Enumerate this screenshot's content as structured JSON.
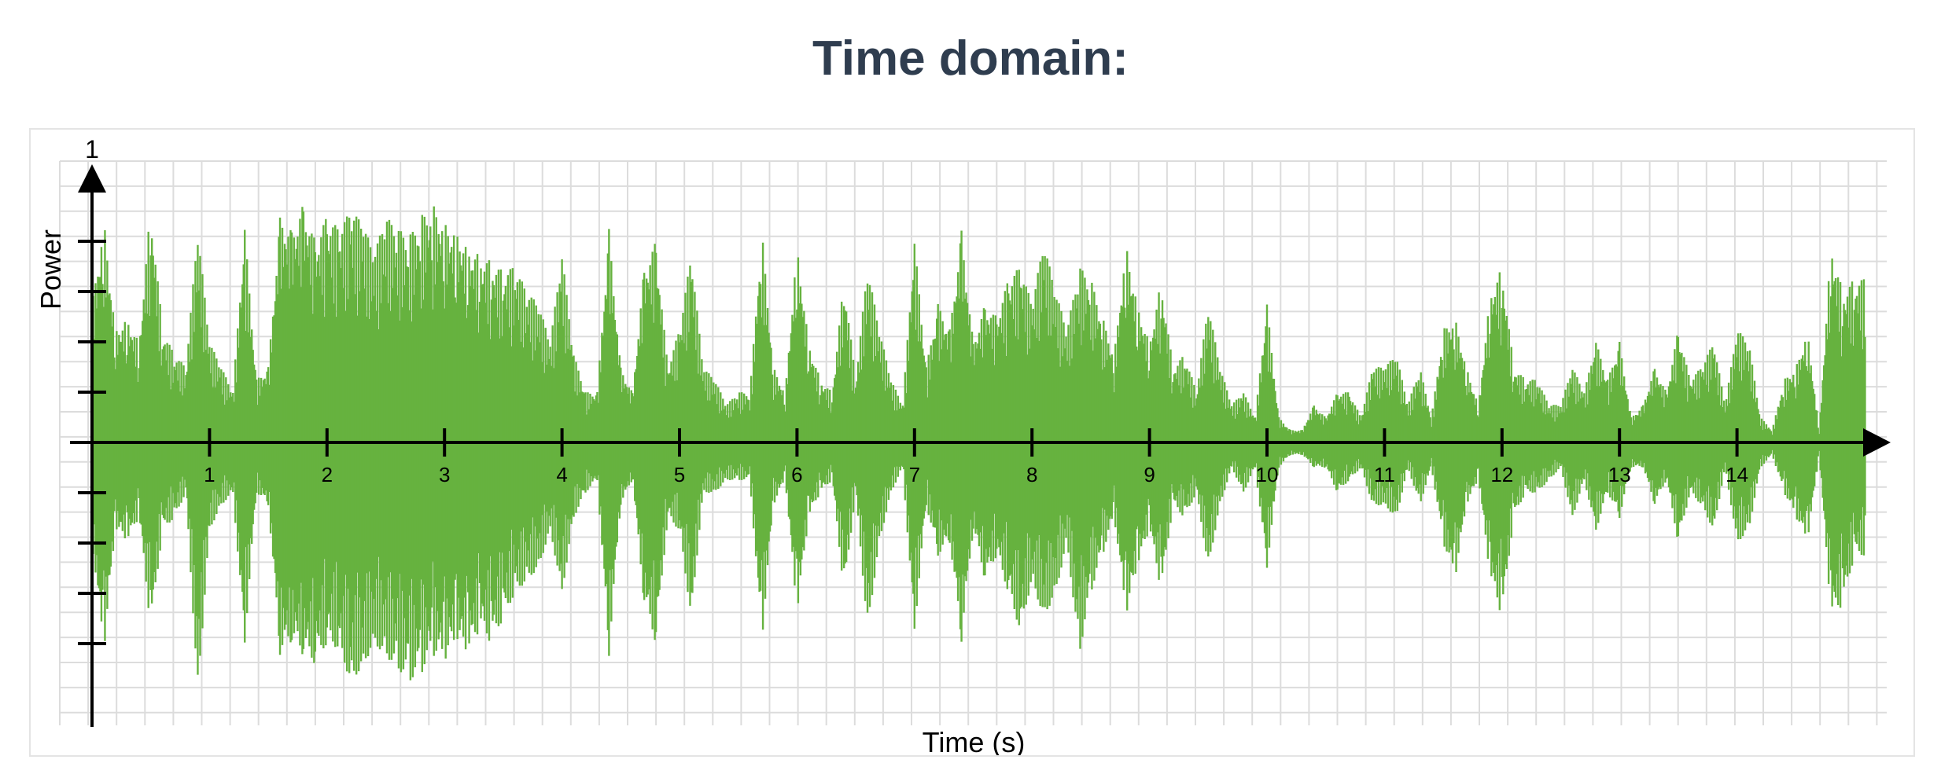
{
  "page": {
    "title": "Time domain:"
  },
  "chart_data": {
    "type": "line",
    "xlabel": "Time (s)",
    "ylabel": "Power",
    "y_top_label": "1",
    "xlim": [
      0,
      15
    ],
    "ylim": [
      -1,
      1
    ],
    "x_ticks": [
      1,
      2,
      3,
      4,
      5,
      6,
      7,
      8,
      9,
      10,
      11,
      12,
      13,
      14
    ],
    "x_tick_labels": [
      "1",
      "2",
      "3",
      "4",
      "5",
      "6",
      "7",
      "8",
      "9",
      "10",
      "11",
      "12",
      "13",
      "14"
    ],
    "y_ticks": [
      -0.8,
      -0.6,
      -0.4,
      -0.2,
      0.2,
      0.4,
      0.6,
      0.8
    ],
    "grid": true,
    "series": [
      {
        "color": "#66b23f",
        "x": [
          0.0,
          0.1,
          0.2,
          0.3,
          0.4,
          0.5,
          0.6,
          0.7,
          0.8,
          0.9,
          1.0,
          1.1,
          1.2,
          1.3,
          1.4,
          1.5,
          1.6,
          1.7,
          1.8,
          1.9,
          2.0,
          2.1,
          2.2,
          2.3,
          2.4,
          2.5,
          2.6,
          2.7,
          2.8,
          2.9,
          3.0,
          3.1,
          3.2,
          3.3,
          3.4,
          3.5,
          3.6,
          3.7,
          3.8,
          3.9,
          4.0,
          4.1,
          4.2,
          4.3,
          4.4,
          4.5,
          4.6,
          4.7,
          4.8,
          4.9,
          5.0,
          5.1,
          5.2,
          5.3,
          5.4,
          5.5,
          5.6,
          5.7,
          5.8,
          5.9,
          6.0,
          6.1,
          6.2,
          6.3,
          6.4,
          6.5,
          6.6,
          6.7,
          6.8,
          6.9,
          7.0,
          7.1,
          7.2,
          7.3,
          7.4,
          7.5,
          7.6,
          7.7,
          7.8,
          7.9,
          8.0,
          8.1,
          8.2,
          8.3,
          8.4,
          8.5,
          8.6,
          8.7,
          8.8,
          8.9,
          9.0,
          9.1,
          9.2,
          9.3,
          9.4,
          9.5,
          9.6,
          9.7,
          9.8,
          9.9,
          10.0,
          10.1,
          10.2,
          10.3,
          10.4,
          10.5,
          10.6,
          10.7,
          10.8,
          10.9,
          11.0,
          11.1,
          11.2,
          11.3,
          11.4,
          11.5,
          11.6,
          11.7,
          11.8,
          11.9,
          12.0,
          12.1,
          12.2,
          12.3,
          12.4,
          12.5,
          12.6,
          12.7,
          12.8,
          12.9,
          13.0,
          13.1,
          13.2,
          13.3,
          13.4,
          13.5,
          13.6,
          13.7,
          13.8,
          13.9,
          14.0,
          14.1,
          14.2,
          14.3,
          14.4,
          14.5,
          14.6,
          14.7,
          14.8,
          14.9,
          15.0
        ],
        "upper": [
          0.55,
          0.9,
          0.45,
          0.5,
          0.4,
          0.95,
          0.45,
          0.35,
          0.3,
          0.85,
          0.4,
          0.3,
          0.2,
          0.85,
          0.25,
          0.3,
          0.9,
          0.85,
          0.95,
          0.8,
          0.9,
          0.85,
          0.92,
          0.88,
          0.75,
          0.9,
          0.85,
          0.82,
          0.9,
          0.95,
          0.88,
          0.85,
          0.78,
          0.75,
          0.72,
          0.68,
          0.7,
          0.6,
          0.55,
          0.4,
          0.75,
          0.35,
          0.2,
          0.2,
          0.85,
          0.3,
          0.2,
          0.7,
          0.8,
          0.3,
          0.45,
          0.75,
          0.3,
          0.25,
          0.15,
          0.2,
          0.2,
          0.85,
          0.3,
          0.2,
          0.8,
          0.4,
          0.25,
          0.2,
          0.65,
          0.25,
          0.7,
          0.45,
          0.25,
          0.15,
          0.8,
          0.3,
          0.55,
          0.45,
          0.85,
          0.4,
          0.55,
          0.5,
          0.65,
          0.7,
          0.55,
          0.8,
          0.6,
          0.45,
          0.7,
          0.65,
          0.5,
          0.35,
          0.8,
          0.55,
          0.4,
          0.65,
          0.3,
          0.35,
          0.2,
          0.55,
          0.3,
          0.15,
          0.2,
          0.1,
          0.55,
          0.1,
          0.05,
          0.05,
          0.15,
          0.1,
          0.2,
          0.2,
          0.1,
          0.3,
          0.3,
          0.35,
          0.15,
          0.3,
          0.1,
          0.45,
          0.5,
          0.3,
          0.15,
          0.6,
          0.7,
          0.3,
          0.25,
          0.25,
          0.15,
          0.15,
          0.3,
          0.2,
          0.4,
          0.25,
          0.4,
          0.1,
          0.15,
          0.3,
          0.2,
          0.45,
          0.25,
          0.3,
          0.4,
          0.15,
          0.45,
          0.4,
          0.1,
          0.05,
          0.25,
          0.3,
          0.45,
          0.05,
          0.8,
          0.6,
          0.65
        ],
        "lower": [
          -0.4,
          -0.85,
          -0.35,
          -0.4,
          -0.3,
          -0.75,
          -0.35,
          -0.3,
          -0.2,
          -1.0,
          -0.35,
          -0.25,
          -0.2,
          -0.8,
          -0.2,
          -0.25,
          -0.85,
          -0.8,
          -0.85,
          -0.88,
          -0.8,
          -0.82,
          -0.95,
          -0.9,
          -0.8,
          -0.85,
          -0.9,
          -0.95,
          -0.92,
          -0.85,
          -0.88,
          -0.8,
          -0.85,
          -0.75,
          -0.8,
          -0.7,
          -0.6,
          -0.55,
          -0.5,
          -0.35,
          -0.6,
          -0.3,
          -0.2,
          -0.15,
          -0.85,
          -0.25,
          -0.15,
          -0.65,
          -0.8,
          -0.3,
          -0.35,
          -0.7,
          -0.2,
          -0.2,
          -0.15,
          -0.15,
          -0.15,
          -0.8,
          -0.25,
          -0.15,
          -0.7,
          -0.3,
          -0.2,
          -0.15,
          -0.6,
          -0.2,
          -0.75,
          -0.4,
          -0.2,
          -0.1,
          -0.75,
          -0.25,
          -0.45,
          -0.4,
          -0.8,
          -0.35,
          -0.55,
          -0.45,
          -0.6,
          -0.75,
          -0.55,
          -0.7,
          -0.6,
          -0.4,
          -0.85,
          -0.6,
          -0.45,
          -0.3,
          -0.7,
          -0.5,
          -0.35,
          -0.6,
          -0.25,
          -0.3,
          -0.2,
          -0.5,
          -0.25,
          -0.1,
          -0.2,
          -0.1,
          -0.5,
          -0.1,
          -0.05,
          -0.05,
          -0.1,
          -0.1,
          -0.2,
          -0.15,
          -0.1,
          -0.25,
          -0.25,
          -0.3,
          -0.1,
          -0.25,
          -0.1,
          -0.4,
          -0.55,
          -0.25,
          -0.15,
          -0.55,
          -0.7,
          -0.3,
          -0.2,
          -0.2,
          -0.15,
          -0.1,
          -0.3,
          -0.15,
          -0.35,
          -0.2,
          -0.3,
          -0.1,
          -0.1,
          -0.25,
          -0.15,
          -0.4,
          -0.2,
          -0.25,
          -0.35,
          -0.1,
          -0.4,
          -0.35,
          -0.1,
          -0.05,
          -0.2,
          -0.3,
          -0.4,
          -0.05,
          -0.7,
          -0.65,
          -0.45
        ]
      }
    ]
  }
}
